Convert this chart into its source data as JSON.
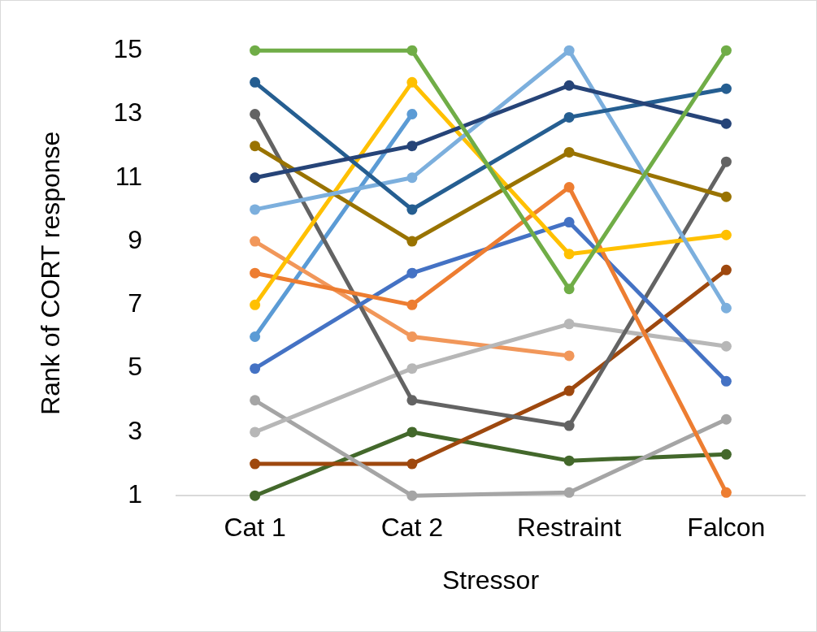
{
  "chart_data": {
    "type": "line",
    "xlabel": "Stressor",
    "ylabel": "Rank of CORT response",
    "categories": [
      "Cat 1",
      "Cat 2",
      "Restraint",
      "Falcon"
    ],
    "series": [
      {
        "color": "#70ad47",
        "values": [
          15,
          15,
          7.5,
          15
        ]
      },
      {
        "color": "#264478",
        "values": [
          11,
          12,
          13.9,
          12.7
        ]
      },
      {
        "color": "#255e91",
        "values": [
          14,
          10,
          12.9,
          13.8
        ]
      },
      {
        "color": "#7cafdd",
        "values": [
          10,
          11,
          15,
          6.9
        ]
      },
      {
        "color": "#997300",
        "values": [
          12,
          9,
          11.8,
          10.4
        ]
      },
      {
        "color": "#ffc000",
        "values": [
          7,
          14,
          8.6,
          9.2
        ]
      },
      {
        "color": "#ed7d31",
        "values": [
          8,
          7,
          10.7,
          1.1
        ]
      },
      {
        "color": "#4472c4",
        "values": [
          5,
          8,
          9.6,
          4.6
        ]
      },
      {
        "color": "#636363",
        "values": [
          13,
          4,
          3.2,
          11.5
        ]
      },
      {
        "color": "#b7b7b7",
        "values": [
          3,
          5,
          6.4,
          5.7
        ]
      },
      {
        "color": "#a5a5a5",
        "values": [
          4,
          1,
          1.1,
          3.4
        ]
      },
      {
        "color": "#9e480e",
        "values": [
          2,
          2,
          4.3,
          8.1
        ]
      },
      {
        "color": "#43682b",
        "values": [
          1,
          3,
          2.1,
          2.3
        ]
      },
      {
        "color": "#f1975a",
        "values": [
          9,
          6,
          5.4,
          null
        ]
      },
      {
        "color": "#5b9bd5",
        "values": [
          6,
          13,
          null,
          null
        ]
      }
    ],
    "ylim": [
      1,
      15
    ],
    "yticks": [
      1,
      3,
      5,
      7,
      9,
      11,
      13,
      15
    ],
    "grid": false,
    "legend": false,
    "marker": "circle",
    "line_style": "solid"
  }
}
